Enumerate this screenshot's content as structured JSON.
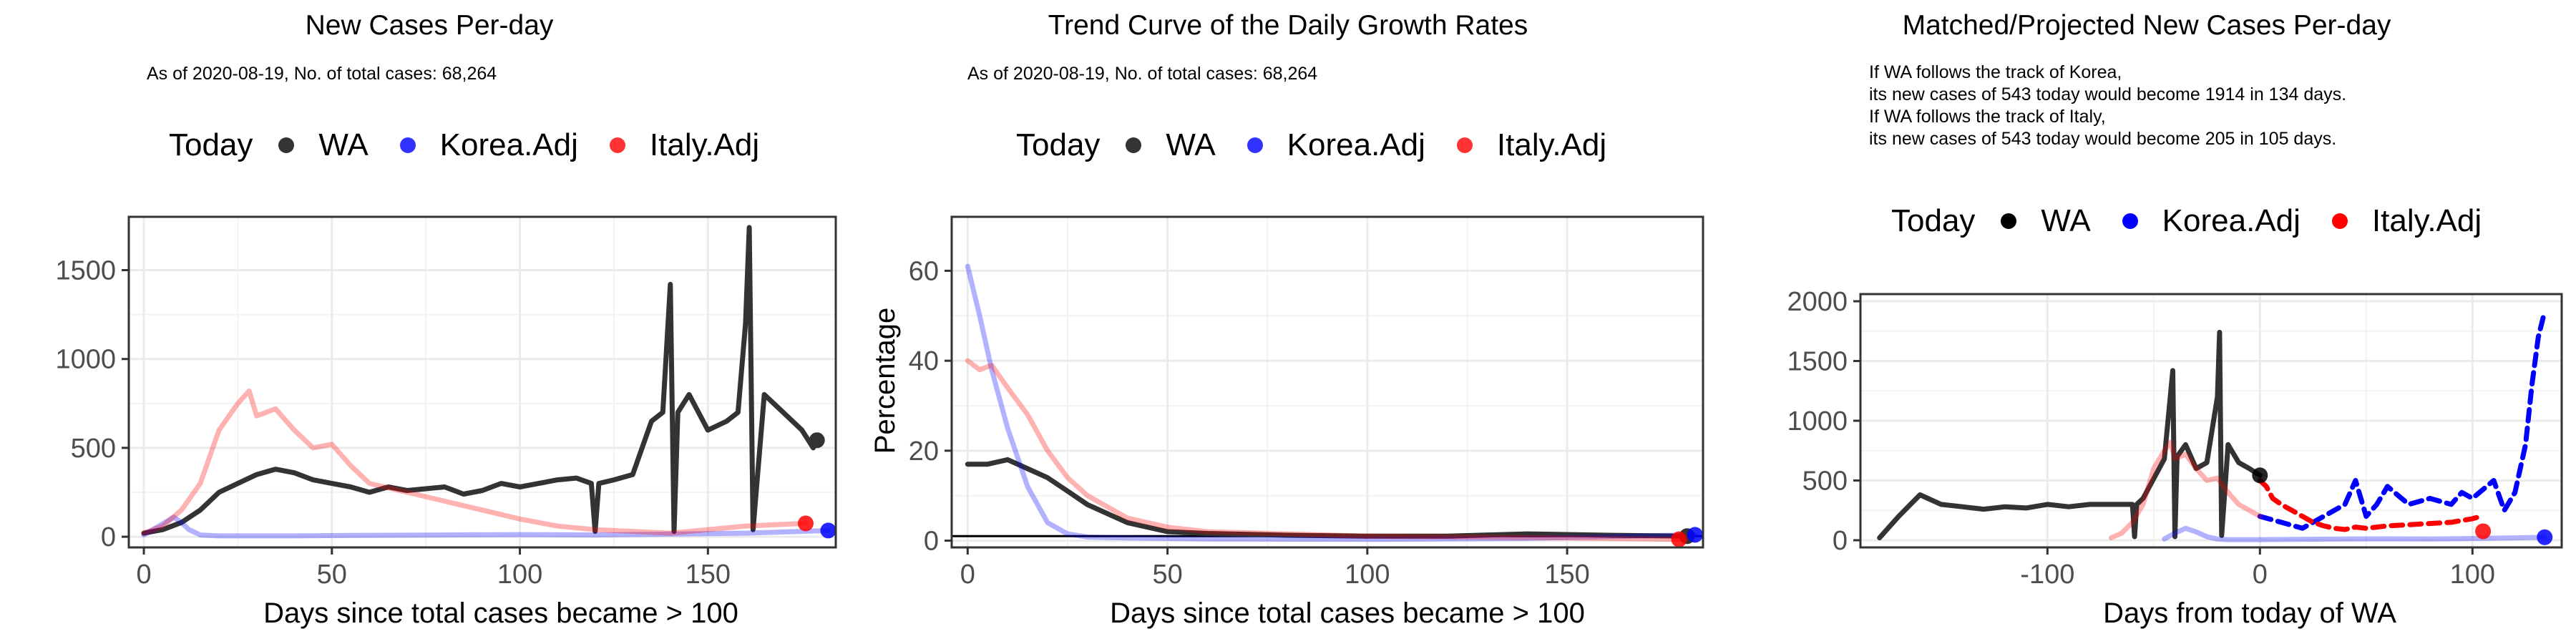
{
  "charts": [
    {
      "title": "New Cases Per-day",
      "subtitle": "As of 2020-08-19, No. of total cases: 68,264",
      "legend": {
        "title": "Today",
        "items": [
          "WA",
          "Korea.Adj",
          "Italy.Adj"
        ]
      },
      "xlabel": "Days since total cases became > 100",
      "ylabel": ""
    },
    {
      "title": "Trend Curve of the Daily Growth Rates",
      "subtitle": "As of 2020-08-19, No. of total cases: 68,264",
      "legend": {
        "title": "Today",
        "items": [
          "WA",
          "Korea.Adj",
          "Italy.Adj"
        ]
      },
      "xlabel": "Days since total cases became > 100",
      "ylabel": "Percentage"
    },
    {
      "title": "Matched/Projected New Cases Per-day",
      "subtitle_lines": [
        "If WA follows the track of Korea,",
        "its new cases of 543 today would become 1914 in 134 days.",
        "If WA follows the track of Italy,",
        "its new cases of 543 today would become 205 in 105 days."
      ],
      "legend": {
        "title": "Today",
        "items": [
          "WA",
          "Korea.Adj",
          "Italy.Adj"
        ]
      },
      "xlabel": "Days from today of WA",
      "ylabel": ""
    }
  ],
  "colors": {
    "wa": "#333333",
    "korea": "#0000ff",
    "italy": "#ff0000",
    "grid": "#ebebeb",
    "axis": "#4d4d4d"
  },
  "chart_data": [
    {
      "type": "line",
      "title": "New Cases Per-day",
      "xlabel": "Days since total cases became > 100",
      "ylabel": "",
      "xlim": [
        -4,
        184
      ],
      "ylim": [
        -60,
        1800
      ],
      "xticks": [
        0,
        50,
        100,
        150
      ],
      "yticks": [
        0,
        500,
        1000,
        1500
      ],
      "series": [
        {
          "name": "WA",
          "color": "#333333",
          "opacity": 1.0,
          "x": [
            0,
            5,
            10,
            15,
            20,
            25,
            30,
            35,
            40,
            45,
            50,
            55,
            60,
            65,
            70,
            75,
            80,
            85,
            90,
            95,
            100,
            105,
            110,
            115,
            119,
            120,
            121,
            125,
            130,
            135,
            138,
            140,
            141,
            142,
            145,
            150,
            155,
            158,
            160,
            161,
            162,
            165,
            170,
            175,
            178,
            179
          ],
          "y": [
            20,
            40,
            80,
            150,
            250,
            300,
            350,
            380,
            360,
            320,
            300,
            280,
            250,
            280,
            260,
            270,
            280,
            240,
            260,
            300,
            280,
            300,
            320,
            330,
            300,
            30,
            300,
            320,
            350,
            650,
            700,
            1420,
            30,
            700,
            800,
            600,
            650,
            700,
            1200,
            1740,
            40,
            800,
            700,
            600,
            500,
            543
          ],
          "today": {
            "x": 179,
            "y": 543
          }
        },
        {
          "name": "Korea.Adj",
          "color": "#0000ff",
          "opacity": 0.3,
          "x": [
            0,
            4,
            8,
            10,
            12,
            15,
            20,
            40,
            60,
            80,
            100,
            120,
            140,
            160,
            175,
            182
          ],
          "y": [
            10,
            60,
            110,
            80,
            40,
            10,
            5,
            5,
            8,
            10,
            12,
            10,
            15,
            20,
            30,
            35
          ],
          "today": {
            "x": 182,
            "y": 35
          }
        },
        {
          "name": "Italy.Adj",
          "color": "#ff0000",
          "opacity": 0.3,
          "x": [
            0,
            5,
            10,
            15,
            20,
            25,
            28,
            30,
            35,
            40,
            45,
            50,
            55,
            60,
            70,
            80,
            90,
            100,
            110,
            120,
            130,
            140,
            150,
            160,
            170,
            176
          ],
          "y": [
            20,
            60,
            150,
            300,
            600,
            750,
            820,
            680,
            720,
            600,
            500,
            520,
            400,
            300,
            250,
            200,
            150,
            100,
            60,
            40,
            30,
            20,
            40,
            60,
            70,
            75
          ],
          "today": {
            "x": 176,
            "y": 75
          }
        }
      ]
    },
    {
      "type": "line",
      "title": "Trend Curve of the Daily Growth Rates",
      "xlabel": "Days since total cases became > 100",
      "ylabel": "Percentage",
      "xlim": [
        -4,
        184
      ],
      "ylim": [
        -1.5,
        72
      ],
      "xticks": [
        0,
        50,
        100,
        150
      ],
      "yticks": [
        0,
        20,
        40,
        60
      ],
      "hline": 1,
      "series": [
        {
          "name": "WA",
          "color": "#333333",
          "opacity": 1.0,
          "x": [
            0,
            5,
            10,
            15,
            20,
            25,
            30,
            40,
            50,
            60,
            80,
            100,
            120,
            140,
            160,
            180
          ],
          "y": [
            17,
            17,
            18,
            16,
            14,
            11,
            8,
            4,
            2,
            1.6,
            1.2,
            1,
            1,
            1.5,
            1.2,
            1
          ],
          "today": {
            "x": 180,
            "y": 1
          }
        },
        {
          "name": "Korea.Adj",
          "color": "#0000ff",
          "opacity": 0.3,
          "x": [
            0,
            3,
            6,
            10,
            15,
            20,
            25,
            30,
            40,
            60,
            100,
            140,
            182
          ],
          "y": [
            61,
            50,
            38,
            25,
            12,
            4,
            1.5,
            0.8,
            0.6,
            0.4,
            0.3,
            0.5,
            1.3
          ],
          "today": {
            "x": 182,
            "y": 1.3
          }
        },
        {
          "name": "Italy.Adj",
          "color": "#ff0000",
          "opacity": 0.3,
          "x": [
            0,
            3,
            6,
            10,
            15,
            20,
            25,
            30,
            40,
            50,
            60,
            80,
            100,
            140,
            178
          ],
          "y": [
            40,
            38,
            39,
            34,
            28,
            20,
            14,
            10,
            5,
            3,
            2,
            1.5,
            1,
            0.7,
            0.3
          ],
          "today": {
            "x": 178,
            "y": 0.3
          }
        }
      ]
    },
    {
      "type": "line",
      "title": "Matched/Projected New Cases Per-day",
      "xlabel": "Days from today of WA",
      "ylabel": "",
      "xlim": [
        -188,
        142
      ],
      "ylim": [
        -60,
        2060
      ],
      "xticks": [
        -100,
        0,
        100
      ],
      "yticks": [
        0,
        500,
        1000,
        1500,
        2000
      ],
      "series": [
        {
          "name": "WA",
          "color": "#000000",
          "opacity": 0.8,
          "dash": false,
          "x": [
            -179,
            -170,
            -160,
            -150,
            -140,
            -130,
            -120,
            -110,
            -100,
            -90,
            -80,
            -70,
            -60,
            -59,
            -58,
            -55,
            -45,
            -41,
            -40,
            -39,
            -35,
            -30,
            -25,
            -20,
            -19,
            -18,
            -15,
            -10,
            -5,
            0
          ],
          "y": [
            20,
            200,
            380,
            300,
            280,
            260,
            280,
            270,
            300,
            280,
            300,
            300,
            300,
            30,
            300,
            350,
            680,
            1420,
            30,
            700,
            800,
            600,
            650,
            1200,
            1740,
            40,
            800,
            650,
            600,
            543
          ],
          "today": {
            "x": 0,
            "y": 543
          }
        },
        {
          "name": "Korea.Adj (matched)",
          "color": "#0000ff",
          "opacity": 0.3,
          "dash": false,
          "x": [
            -45,
            -40,
            -35,
            -30,
            -25,
            -20,
            -15,
            -10,
            -5,
            0,
            20,
            40,
            60,
            80,
            100,
            120,
            134
          ],
          "y": [
            10,
            60,
            100,
            70,
            30,
            10,
            5,
            5,
            5,
            5,
            8,
            10,
            12,
            10,
            15,
            20,
            25
          ],
          "today": {
            "x": 134,
            "y": 25
          }
        },
        {
          "name": "Korea.Adj (projected)",
          "color": "#0000ff",
          "opacity": 1.0,
          "dash": true,
          "x": [
            0,
            10,
            20,
            30,
            40,
            45,
            50,
            55,
            60,
            70,
            80,
            90,
            95,
            100,
            110,
            115,
            120,
            125,
            128,
            131,
            134
          ],
          "y": [
            200,
            150,
            100,
            200,
            300,
            500,
            200,
            300,
            450,
            300,
            350,
            300,
            400,
            350,
            500,
            250,
            400,
            800,
            1300,
            1700,
            1914
          ]
        },
        {
          "name": "Italy.Adj (matched)",
          "color": "#ff0000",
          "opacity": 0.3,
          "dash": false,
          "x": [
            -70,
            -65,
            -60,
            -55,
            -50,
            -45,
            -42,
            -40,
            -35,
            -30,
            -25,
            -20,
            -15,
            -10,
            -5,
            0
          ],
          "y": [
            20,
            60,
            150,
            300,
            600,
            750,
            820,
            680,
            720,
            600,
            500,
            520,
            400,
            300,
            250,
            200
          ],
          "today": {
            "x": 105,
            "y": 75
          }
        },
        {
          "name": "Italy.Adj (projected)",
          "color": "#ff0000",
          "opacity": 1.0,
          "dash": true,
          "x": [
            0,
            3,
            6,
            10,
            15,
            20,
            25,
            30,
            35,
            40,
            45,
            50,
            60,
            70,
            80,
            90,
            100,
            105
          ],
          "y": [
            500,
            450,
            350,
            300,
            250,
            200,
            150,
            120,
            100,
            90,
            110,
            100,
            120,
            130,
            140,
            150,
            180,
            205
          ]
        }
      ]
    }
  ]
}
